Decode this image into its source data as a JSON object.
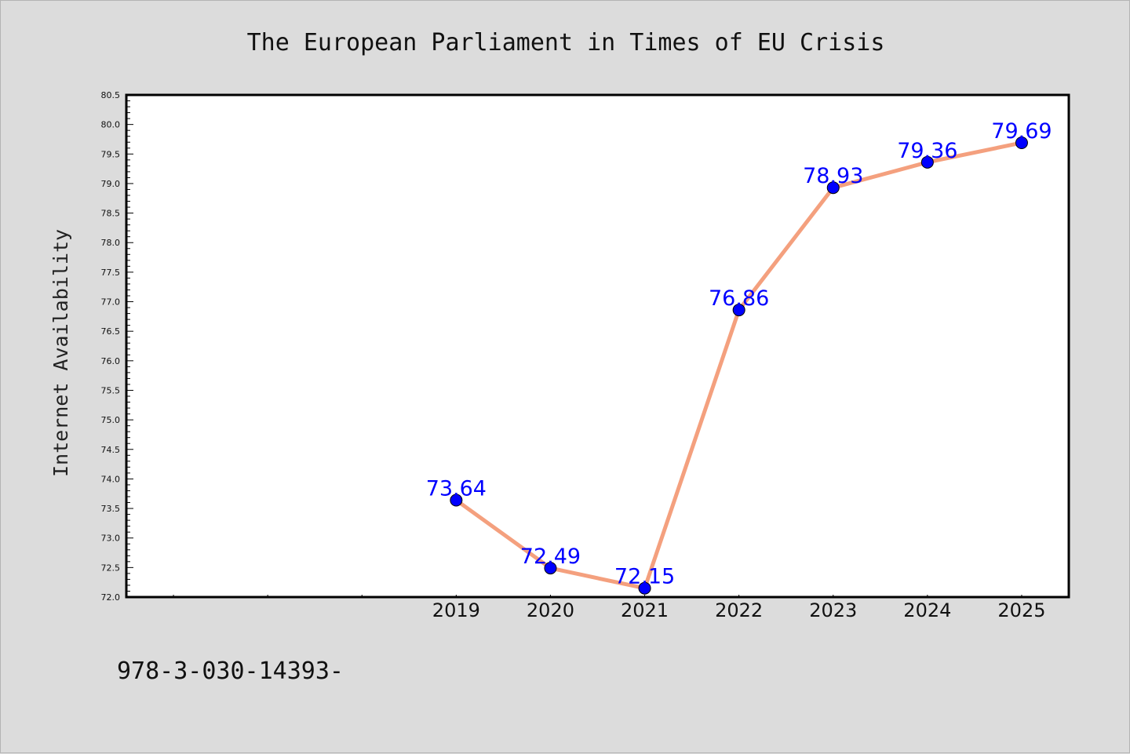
{
  "chart_data": {
    "type": "line",
    "title": "The European Parliament in Times of EU Crisis",
    "xlabel": "",
    "ylabel": "Internet Availability",
    "x": [
      2019,
      2020,
      2021,
      2022,
      2023,
      2024,
      2025
    ],
    "x_tick_labels": [
      "2019",
      "2020",
      "2021",
      "2022",
      "2023",
      "2024",
      "2025"
    ],
    "xlim": [
      2015.5,
      2025.5
    ],
    "ylim": [
      72.0,
      80.5
    ],
    "y_tick_labels": [
      "72.0",
      "72.5",
      "73.0",
      "73.5",
      "74.0",
      "74.5",
      "75.0",
      "75.5",
      "76.0",
      "76.5",
      "77.0",
      "77.5",
      "78.0",
      "78.5",
      "79.0",
      "79.5",
      "80.0",
      "80.5"
    ],
    "series": [
      {
        "values": [
          73.64,
          72.49,
          72.15,
          76.86,
          78.93,
          79.36,
          79.69
        ],
        "data_labels": [
          "73.64",
          "72.49",
          "72.15",
          "76.86",
          "78.93",
          "79.36",
          "79.69"
        ],
        "line_color": "#f4a07e",
        "marker_color": "#0000ff",
        "label_color": "#0000ff"
      }
    ],
    "grid": false,
    "legend": "none"
  },
  "footer": {
    "text": "978-3-030-14393-"
  },
  "colors": {
    "background": "#dcdcdc",
    "plot_background": "#ffffff",
    "axes": "#000000"
  }
}
